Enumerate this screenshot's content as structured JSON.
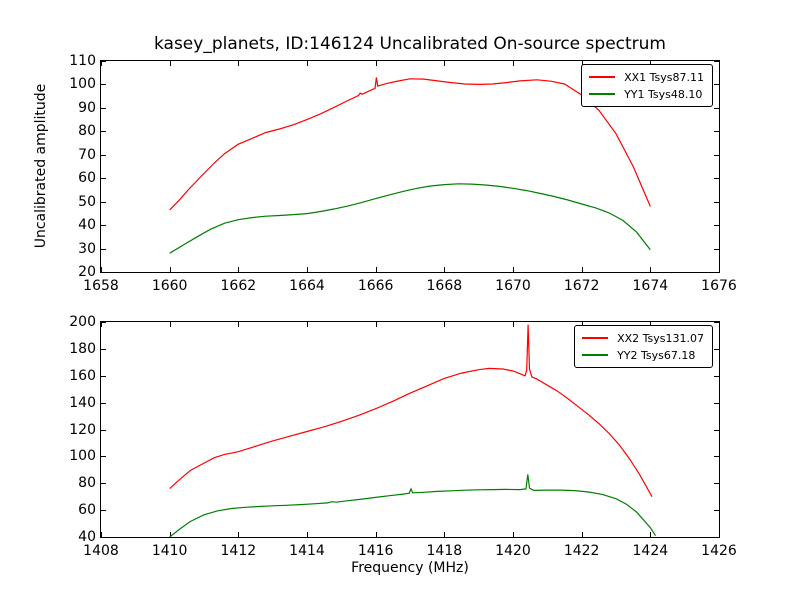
{
  "figure": {
    "title": "kasey_planets, ID:146124 Uncalibrated On-source spectrum",
    "ylabel": "Uncalibrated amplitude",
    "xlabel": "Frequency (MHz)",
    "background_color": "#ffffff",
    "axis_color": "#000000"
  },
  "chart_data": [
    {
      "type": "line",
      "subplot": "top",
      "xlim": [
        1658,
        1676
      ],
      "ylim": [
        20,
        110
      ],
      "xticks": [
        1658,
        1660,
        1662,
        1664,
        1666,
        1668,
        1670,
        1672,
        1674,
        1676
      ],
      "yticks": [
        20,
        30,
        40,
        50,
        60,
        70,
        80,
        90,
        100,
        110
      ],
      "grid": false,
      "legend_position": "upper right",
      "series": [
        {
          "name": "XX1 Tsys87.11",
          "color": "#ff0000",
          "points": [
            [
              1660.0,
              46.5
            ],
            [
              1660.3,
              51
            ],
            [
              1660.6,
              56
            ],
            [
              1661.0,
              62
            ],
            [
              1661.3,
              66.5
            ],
            [
              1661.6,
              70.5
            ],
            [
              1662.0,
              74.5
            ],
            [
              1662.4,
              77
            ],
            [
              1662.8,
              79.5
            ],
            [
              1663.2,
              81
            ],
            [
              1663.6,
              82.8
            ],
            [
              1664.0,
              85
            ],
            [
              1664.4,
              87.5
            ],
            [
              1664.8,
              90.3
            ],
            [
              1665.2,
              93.2
            ],
            [
              1665.5,
              95.3
            ],
            [
              1665.55,
              96.3
            ],
            [
              1665.6,
              95.8
            ],
            [
              1665.9,
              97.8
            ],
            [
              1665.98,
              98.3
            ],
            [
              1666.02,
              103
            ],
            [
              1666.06,
              99.3
            ],
            [
              1666.3,
              100.3
            ],
            [
              1666.6,
              101.3
            ],
            [
              1667.0,
              102.4
            ],
            [
              1667.4,
              102.3
            ],
            [
              1667.8,
              101.5
            ],
            [
              1668.2,
              100.8
            ],
            [
              1668.6,
              100.2
            ],
            [
              1669.0,
              100.0
            ],
            [
              1669.4,
              100.2
            ],
            [
              1669.8,
              100.8
            ],
            [
              1670.2,
              101.5
            ],
            [
              1670.7,
              102.0
            ],
            [
              1671.1,
              101.4
            ],
            [
              1671.5,
              100.2
            ],
            [
              1672.0,
              95.5
            ],
            [
              1672.5,
              89
            ],
            [
              1673.0,
              79
            ],
            [
              1673.5,
              65
            ],
            [
              1674.0,
              48
            ]
          ]
        },
        {
          "name": "YY1 Tsys48.10",
          "color": "#007f00",
          "points": [
            [
              1660.0,
              28
            ],
            [
              1660.4,
              31.5
            ],
            [
              1660.8,
              35
            ],
            [
              1661.2,
              38.3
            ],
            [
              1661.6,
              40.8
            ],
            [
              1662.0,
              42.3
            ],
            [
              1662.4,
              43.2
            ],
            [
              1662.8,
              43.8
            ],
            [
              1663.2,
              44.1
            ],
            [
              1663.6,
              44.5
            ],
            [
              1664.0,
              44.9
            ],
            [
              1664.4,
              45.8
            ],
            [
              1664.8,
              46.9
            ],
            [
              1665.2,
              48.2
            ],
            [
              1665.6,
              49.7
            ],
            [
              1666.0,
              51.3
            ],
            [
              1666.4,
              52.9
            ],
            [
              1666.8,
              54.4
            ],
            [
              1667.2,
              55.7
            ],
            [
              1667.6,
              56.7
            ],
            [
              1668.0,
              57.3
            ],
            [
              1668.4,
              57.6
            ],
            [
              1668.8,
              57.5
            ],
            [
              1669.2,
              57.1
            ],
            [
              1669.6,
              56.5
            ],
            [
              1670.0,
              55.7
            ],
            [
              1670.4,
              54.7
            ],
            [
              1670.8,
              53.5
            ],
            [
              1671.2,
              52.2
            ],
            [
              1671.6,
              50.7
            ],
            [
              1672.0,
              49
            ],
            [
              1672.4,
              47.4
            ],
            [
              1672.8,
              45.2
            ],
            [
              1673.2,
              42
            ],
            [
              1673.6,
              37
            ],
            [
              1674.0,
              29.5
            ]
          ]
        }
      ]
    },
    {
      "type": "line",
      "subplot": "bottom",
      "xlim": [
        1408,
        1426
      ],
      "ylim": [
        40,
        200
      ],
      "xticks": [
        1408,
        1410,
        1412,
        1414,
        1416,
        1418,
        1420,
        1422,
        1424,
        1426
      ],
      "yticks": [
        40,
        60,
        80,
        100,
        120,
        140,
        160,
        180,
        200
      ],
      "grid": false,
      "legend_position": "upper right",
      "xlabel": "Frequency (MHz)",
      "series": [
        {
          "name": "XX2 Tsys131.07",
          "color": "#ff0000",
          "points": [
            [
              1410.0,
              76
            ],
            [
              1410.3,
              83
            ],
            [
              1410.6,
              89.5
            ],
            [
              1411.0,
              95
            ],
            [
              1411.3,
              99
            ],
            [
              1411.6,
              101.5
            ],
            [
              1412.0,
              103.5
            ],
            [
              1412.5,
              107.5
            ],
            [
              1413.0,
              111.5
            ],
            [
              1413.5,
              115
            ],
            [
              1414.0,
              118.5
            ],
            [
              1414.5,
              122
            ],
            [
              1415.0,
              126
            ],
            [
              1415.5,
              130.5
            ],
            [
              1416.0,
              135.5
            ],
            [
              1416.5,
              141
            ],
            [
              1417.0,
              147
            ],
            [
              1417.5,
              152.5
            ],
            [
              1418.0,
              158
            ],
            [
              1418.5,
              162
            ],
            [
              1419.0,
              164.5
            ],
            [
              1419.3,
              165.5
            ],
            [
              1419.7,
              165
            ],
            [
              1420.0,
              163.5
            ],
            [
              1420.2,
              161.5
            ],
            [
              1420.35,
              160
            ],
            [
              1420.4,
              164
            ],
            [
              1420.44,
              198
            ],
            [
              1420.48,
              165
            ],
            [
              1420.55,
              159
            ],
            [
              1420.7,
              157.5
            ],
            [
              1421.0,
              153
            ],
            [
              1421.3,
              148.5
            ],
            [
              1421.6,
              143
            ],
            [
              1421.9,
              137
            ],
            [
              1422.2,
              131
            ],
            [
              1422.5,
              124.5
            ],
            [
              1422.8,
              117
            ],
            [
              1423.1,
              108.5
            ],
            [
              1423.4,
              98
            ],
            [
              1423.7,
              86
            ],
            [
              1424.05,
              70
            ]
          ]
        },
        {
          "name": "YY2 Tsys67.18",
          "color": "#007f00",
          "points": [
            [
              1410.0,
              40
            ],
            [
              1410.3,
              46
            ],
            [
              1410.6,
              51.5
            ],
            [
              1411.0,
              56.5
            ],
            [
              1411.4,
              59.5
            ],
            [
              1411.8,
              61.2
            ],
            [
              1412.2,
              62.1
            ],
            [
              1412.6,
              62.7
            ],
            [
              1413.0,
              63.2
            ],
            [
              1413.4,
              63.6
            ],
            [
              1413.8,
              64.1
            ],
            [
              1414.2,
              64.7
            ],
            [
              1414.6,
              65.4
            ],
            [
              1414.72,
              66.3
            ],
            [
              1414.85,
              65.9
            ],
            [
              1415.2,
              67
            ],
            [
              1415.6,
              68.2
            ],
            [
              1416.0,
              69.5
            ],
            [
              1416.4,
              70.7
            ],
            [
              1416.8,
              71.9
            ],
            [
              1416.98,
              72.6
            ],
            [
              1417.03,
              75.8
            ],
            [
              1417.08,
              72.9
            ],
            [
              1417.4,
              73.3
            ],
            [
              1417.8,
              73.9
            ],
            [
              1418.2,
              74.4
            ],
            [
              1418.6,
              74.8
            ],
            [
              1419.0,
              75.1
            ],
            [
              1419.4,
              75.3
            ],
            [
              1419.8,
              75.4
            ],
            [
              1420.2,
              75.3
            ],
            [
              1420.38,
              75.8
            ],
            [
              1420.43,
              86.5
            ],
            [
              1420.48,
              76.5
            ],
            [
              1420.6,
              74.7
            ],
            [
              1421.0,
              74.9
            ],
            [
              1421.4,
              74.9
            ],
            [
              1421.8,
              74.5
            ],
            [
              1422.2,
              73.5
            ],
            [
              1422.6,
              71.7
            ],
            [
              1423.0,
              68.5
            ],
            [
              1423.3,
              64.5
            ],
            [
              1423.6,
              58.5
            ],
            [
              1424.0,
              47
            ],
            [
              1424.15,
              41
            ]
          ]
        }
      ]
    }
  ]
}
